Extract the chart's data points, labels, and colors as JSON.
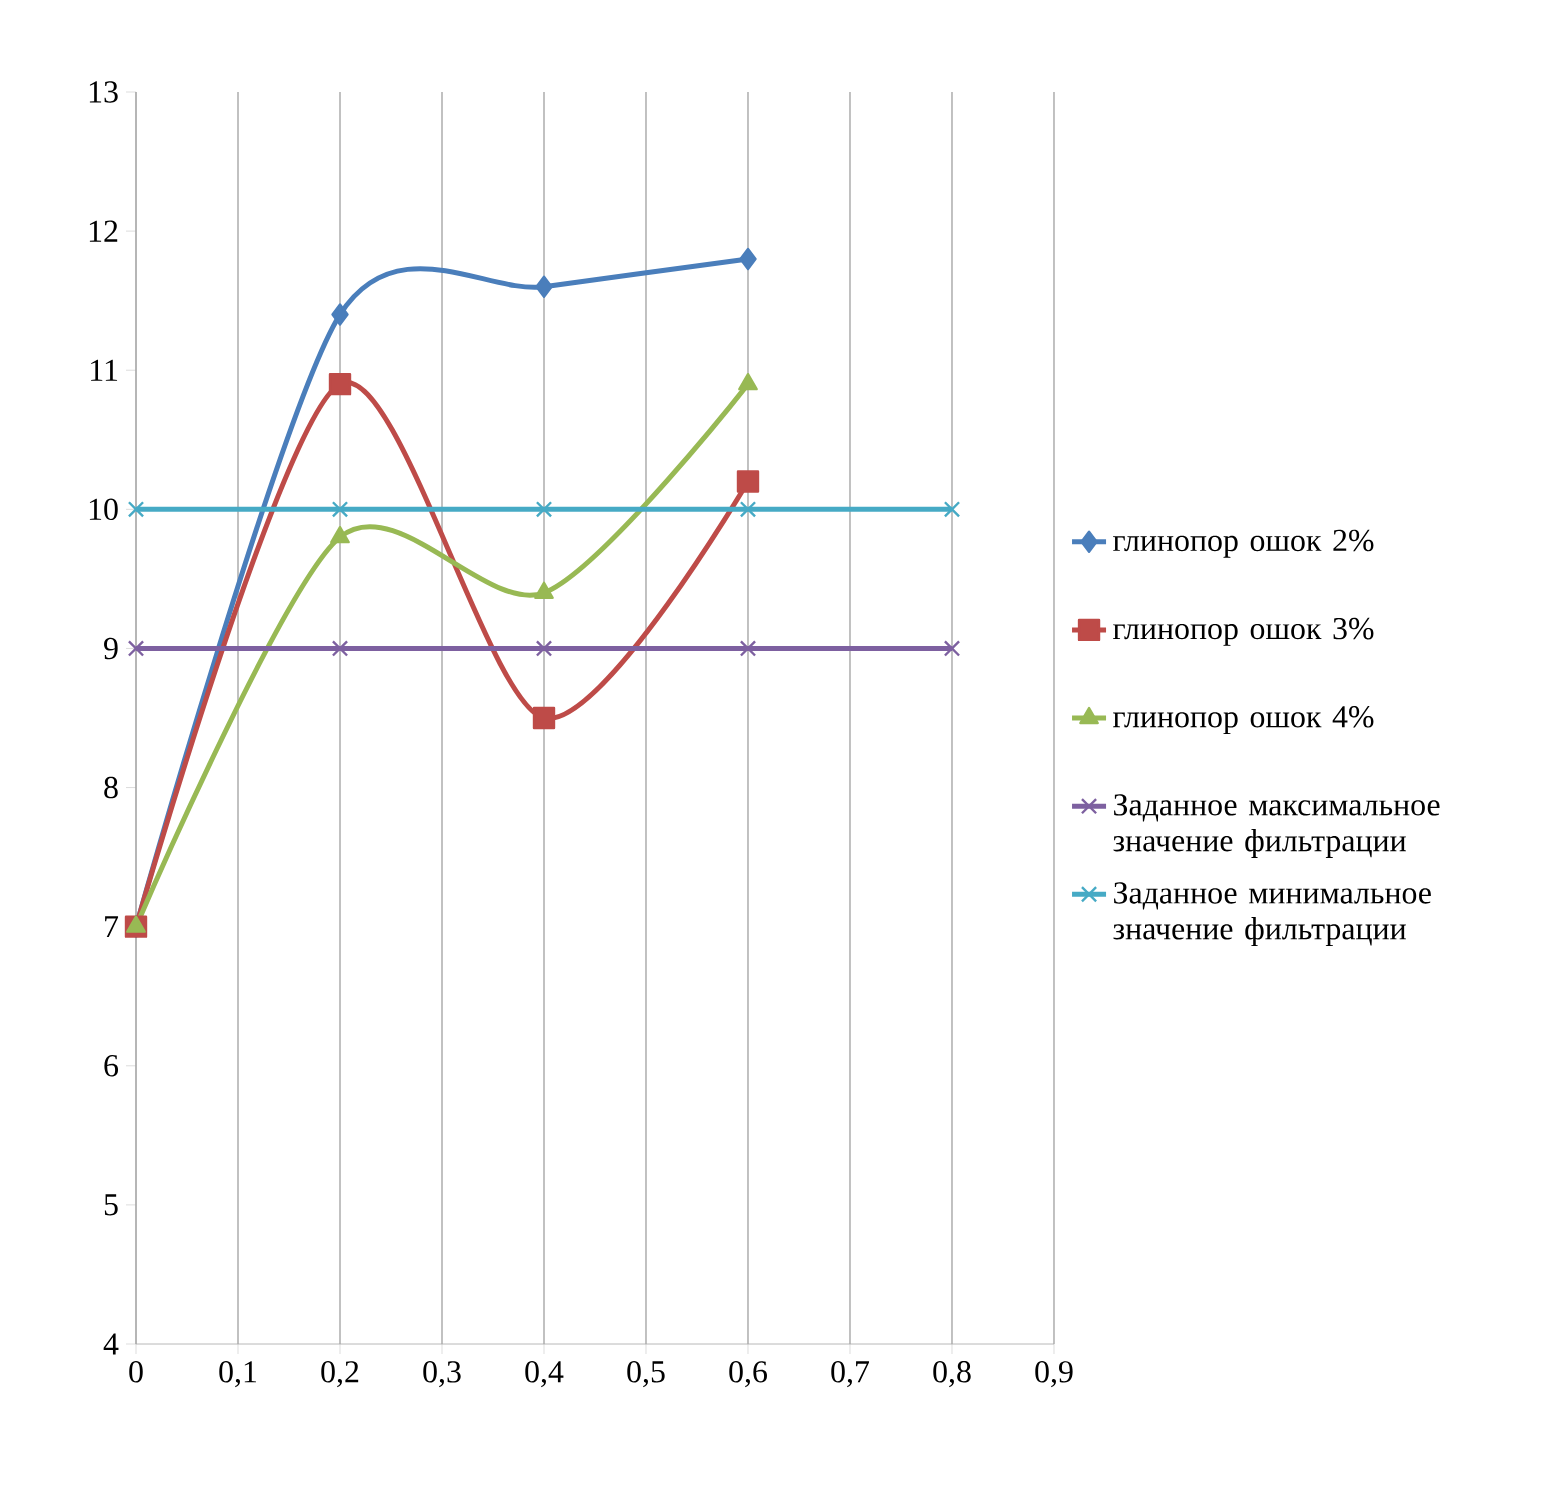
{
  "chart_data": {
    "type": "line",
    "xlim": [
      0,
      0.9
    ],
    "xticks": [
      0,
      {
        "value": 0.1,
        "label": "0,1"
      },
      {
        "value": 0.2,
        "label": "0,2"
      },
      {
        "value": 0.3,
        "label": "0,3"
      },
      {
        "value": 0.4,
        "label": "0,4"
      },
      {
        "value": 0.5,
        "label": "0,5"
      },
      {
        "value": 0.6,
        "label": "0,6"
      },
      {
        "value": 0.7,
        "label": "0,7"
      },
      {
        "value": 0.8,
        "label": "0,8"
      },
      {
        "value": 0.9,
        "label": "0,9"
      }
    ],
    "ylim": [
      4,
      13
    ],
    "yticks": [
      4,
      5,
      6,
      7,
      8,
      9,
      10,
      11,
      12,
      13
    ],
    "grid": "x",
    "legend": "right",
    "series": [
      {
        "name": "глинопор ошок 2%",
        "color": "#4a7ebb",
        "marker": "diamond",
        "x": [
          0,
          0.2,
          0.4,
          0.6
        ],
        "values": [
          7,
          11.4,
          11.6,
          11.8
        ]
      },
      {
        "name": "глинопор ошок 3%",
        "color": "#be4b48",
        "marker": "square",
        "x": [
          0,
          0.2,
          0.4,
          0.6
        ],
        "values": [
          7,
          10.9,
          8.5,
          10.2
        ]
      },
      {
        "name": "глинопор ошок 4%",
        "color": "#98b954",
        "marker": "triangle",
        "x": [
          0,
          0.2,
          0.4,
          0.6
        ],
        "values": [
          7,
          9.8,
          9.4,
          10.9
        ]
      },
      {
        "name": "Заданное максимальное значение фильтрации",
        "color": "#7d60a0",
        "marker": "cross",
        "x": [
          0,
          0.2,
          0.4,
          0.6,
          0.8
        ],
        "values": [
          9,
          9,
          9,
          9,
          9
        ]
      },
      {
        "name": "Заданное минимальное значение фильтрации",
        "color": "#46aac5",
        "marker": "cross",
        "x": [
          0,
          0.2,
          0.4,
          0.6,
          0.8
        ],
        "values": [
          10,
          10,
          10,
          10,
          10
        ]
      }
    ]
  }
}
